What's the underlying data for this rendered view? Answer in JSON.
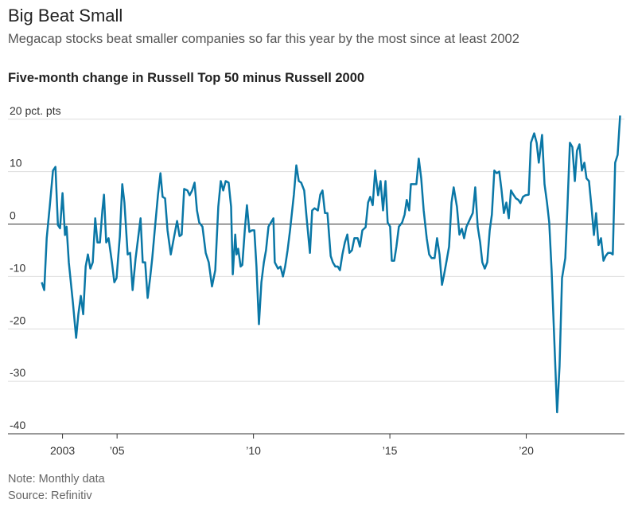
{
  "chart_data": {
    "type": "line",
    "title": "Big Beat Small",
    "subtitle": "Megacap stocks beat smaller companies so far this year by the most since at least 2002",
    "chart_title": "Five-month change in Russell Top 50 minus Russell 2000",
    "note": "Note: Monthly data",
    "source": "Source: Refinitiv",
    "color": "#0a77a6",
    "grid": true,
    "xlim": [
      2001.0,
      2023.6
    ],
    "ylim": [
      -40,
      23
    ],
    "xticks": [
      2003,
      {
        "value": 2005,
        "label": "’05"
      },
      {
        "value": 2010,
        "label": "’10"
      },
      {
        "value": 2015,
        "label": "’15"
      },
      {
        "value": 2020,
        "label": "’20"
      }
    ],
    "yticks": [
      {
        "value": 20,
        "label": "20 pct. pts"
      },
      10,
      0,
      -10,
      -20,
      -30,
      -40
    ],
    "x": [
      2002.24,
      2002.33,
      2002.42,
      2002.53,
      2002.65,
      2002.74,
      2002.83,
      2002.91,
      2003.0,
      2003.09,
      2003.15,
      2003.23,
      2003.38,
      2003.5,
      2003.58,
      2003.67,
      2003.76,
      2003.85,
      2003.93,
      2004.02,
      2004.11,
      2004.2,
      2004.28,
      2004.37,
      2004.46,
      2004.52,
      2004.6,
      2004.69,
      2004.81,
      2004.9,
      2004.98,
      2005.1,
      2005.19,
      2005.27,
      2005.39,
      2005.48,
      2005.57,
      2005.68,
      2005.77,
      2005.86,
      2005.94,
      2006.03,
      2006.12,
      2006.21,
      2006.29,
      2006.38,
      2006.5,
      2006.59,
      2006.67,
      2006.76,
      2006.85,
      2006.97,
      2007.08,
      2007.2,
      2007.29,
      2007.37,
      2007.46,
      2007.58,
      2007.66,
      2007.75,
      2007.84,
      2007.93,
      2008.01,
      2008.13,
      2008.25,
      2008.36,
      2008.48,
      2008.6,
      2008.71,
      2008.8,
      2008.89,
      2008.98,
      2009.09,
      2009.18,
      2009.24,
      2009.33,
      2009.38,
      2009.44,
      2009.53,
      2009.59,
      2009.68,
      2009.76,
      2009.85,
      2009.94,
      2010.03,
      2010.11,
      2010.2,
      2010.29,
      2010.38,
      2010.46,
      2010.55,
      2010.64,
      2010.73,
      2010.78,
      2010.9,
      2010.99,
      2011.08,
      2011.16,
      2011.25,
      2011.34,
      2011.48,
      2011.57,
      2011.66,
      2011.75,
      2011.86,
      2011.95,
      2012.07,
      2012.15,
      2012.24,
      2012.36,
      2012.45,
      2012.53,
      2012.62,
      2012.71,
      2012.83,
      2012.91,
      2013.0,
      2013.09,
      2013.17,
      2013.26,
      2013.35,
      2013.44,
      2013.52,
      2013.61,
      2013.7,
      2013.82,
      2013.9,
      2013.99,
      2014.11,
      2014.2,
      2014.28,
      2014.37,
      2014.46,
      2014.57,
      2014.66,
      2014.75,
      2014.84,
      2014.92,
      2015.01,
      2015.07,
      2015.16,
      2015.24,
      2015.33,
      2015.45,
      2015.54,
      2015.62,
      2015.71,
      2015.77,
      2015.89,
      2015.97,
      2016.06,
      2016.15,
      2016.24,
      2016.35,
      2016.44,
      2016.53,
      2016.64,
      2016.73,
      2016.82,
      2016.91,
      2016.99,
      2017.08,
      2017.17,
      2017.26,
      2017.34,
      2017.46,
      2017.55,
      2017.64,
      2017.72,
      2017.81,
      2017.93,
      2018.04,
      2018.13,
      2018.22,
      2018.31,
      2018.39,
      2018.48,
      2018.57,
      2018.66,
      2018.74,
      2018.83,
      2018.92,
      2019.01,
      2019.09,
      2019.18,
      2019.27,
      2019.36,
      2019.44,
      2019.53,
      2019.62,
      2019.71,
      2019.79,
      2019.88,
      2019.97,
      2020.09,
      2020.17,
      2020.29,
      2020.38,
      2020.46,
      2020.58,
      2020.67,
      2020.76,
      2020.84,
      2020.93,
      2021.02,
      2021.13,
      2021.22,
      2021.31,
      2021.43,
      2021.51,
      2021.6,
      2021.69,
      2021.78,
      2021.86,
      2021.95,
      2022.04,
      2022.13,
      2022.21,
      2022.3,
      2022.39,
      2022.48,
      2022.56,
      2022.65,
      2022.74,
      2022.83,
      2022.91,
      2023.0,
      2023.09,
      2023.17,
      2023.26,
      2023.35,
      2023.44
    ],
    "values": [
      -11.1,
      -12.6,
      -2.7,
      3.3,
      10.2,
      10.9,
      -0.2,
      -0.8,
      5.9,
      -2.1,
      -0.5,
      -7.3,
      -14.9,
      -21.7,
      -17.2,
      -13.7,
      -17.2,
      -8.1,
      -5.8,
      -8.5,
      -7.3,
      1.1,
      -3.5,
      -3.5,
      2.6,
      5.6,
      -3.5,
      -2.7,
      -7.3,
      -11.1,
      -10.3,
      -2.4,
      7.6,
      4.1,
      -5.8,
      -5.5,
      -12.6,
      -6.5,
      -2.7,
      1.1,
      -7.3,
      -7.3,
      -14.1,
      -10.3,
      -6.5,
      -1.2,
      5.6,
      9.7,
      5.2,
      4.9,
      -1.2,
      -5.8,
      -2.7,
      0.6,
      -2.3,
      -2,
      6.7,
      6.4,
      5.5,
      6.4,
      7.9,
      2.6,
      0.3,
      -0.5,
      -5.5,
      -7.3,
      -11.9,
      -8.8,
      3.3,
      8.2,
      6.4,
      8.2,
      7.9,
      3.3,
      -9.6,
      -2,
      -5.8,
      -4.7,
      -8.1,
      -7.8,
      -1.2,
      3.6,
      -1.5,
      -1.2,
      -1.2,
      -8.1,
      -19.1,
      -11.1,
      -7.3,
      -5,
      -0.5,
      0.3,
      1.1,
      -7.3,
      -8.5,
      -8.1,
      -10,
      -8.1,
      -5,
      -1.2,
      5.6,
      11.2,
      8.2,
      7.9,
      6.4,
      1.1,
      -5.5,
      2.6,
      3,
      2.6,
      5.6,
      6.4,
      2.1,
      2.1,
      -6.1,
      -7.3,
      -8.1,
      -8.1,
      -8.8,
      -5.8,
      -3.5,
      -2,
      -5.5,
      -5,
      -2.7,
      -2.7,
      -4.3,
      -1.2,
      -0.6,
      4.1,
      5.2,
      3.6,
      10.2,
      5.5,
      8.2,
      2.6,
      8.2,
      0.3,
      -0.5,
      -7,
      -7,
      -4.3,
      -0.5,
      0.3,
      1.8,
      4.6,
      2.6,
      7.6,
      7.6,
      7.6,
      12.5,
      8.7,
      2.6,
      -2.7,
      -5.8,
      -6.5,
      -6.5,
      -2.7,
      -5.8,
      -11.6,
      -9.6,
      -7,
      -4.3,
      4.1,
      7,
      3.3,
      -2,
      -0.9,
      -2.7,
      -0.5,
      0.9,
      2.1,
      7,
      -0.5,
      -3.5,
      -7.3,
      -8.5,
      -7.3,
      -1.2,
      1.8,
      10.2,
      9.7,
      10,
      6.7,
      2.1,
      4.1,
      1.1,
      6.4,
      5.6,
      4.9,
      4.6,
      4,
      5.2,
      5.5,
      5.6,
      15.5,
      17.3,
      15.5,
      11.7,
      17,
      7.6,
      4.1,
      0.3,
      -8.8,
      -21,
      -35.9,
      -27.1,
      -10.3,
      -6.5,
      3.3,
      15.5,
      14.7,
      8.2,
      14,
      15.2,
      10.2,
      11.7,
      8.7,
      8.2,
      3.3,
      -2.1,
      2.1,
      -4,
      -2.7,
      -7,
      -6.1,
      -5.5,
      -5.5,
      -5.8,
      11.7,
      13.2,
      20.7
    ]
  }
}
